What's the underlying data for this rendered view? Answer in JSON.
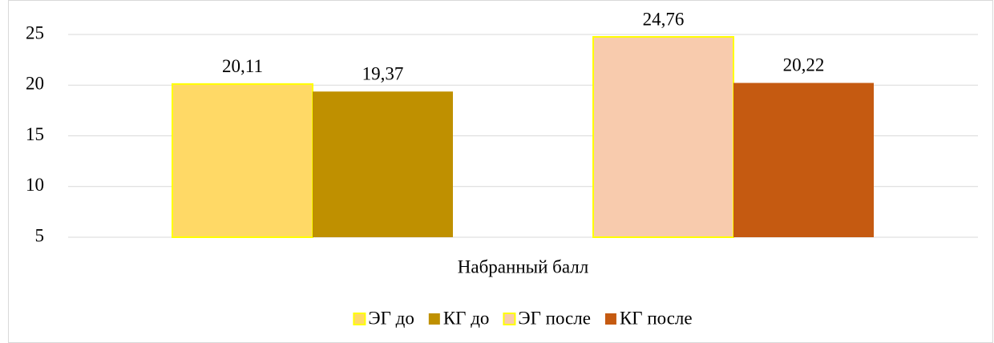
{
  "chart_data": {
    "type": "bar",
    "categories": [
      "Набранный балл"
    ],
    "series": [
      {
        "name": "ЭГ до",
        "color": "#FFD966",
        "edgecolor": "#FFFF00",
        "values": [
          20.11
        ],
        "value_labels": [
          "20,11"
        ]
      },
      {
        "name": "КГ до",
        "color": "#BF9000",
        "values": [
          19.37
        ],
        "value_labels": [
          "19,37"
        ]
      },
      {
        "name": "ЭГ после",
        "color": "#F8CBAD",
        "edgecolor": "#FFFF00",
        "values": [
          24.76
        ],
        "value_labels": [
          "24,76"
        ]
      },
      {
        "name": "КГ после",
        "color": "#C55A11",
        "values": [
          20.22
        ],
        "value_labels": [
          "20,22"
        ]
      }
    ],
    "ylim": [
      5,
      25
    ],
    "yticks": [
      5,
      10,
      15,
      20,
      25
    ],
    "grid": true,
    "legend": "bottom"
  }
}
